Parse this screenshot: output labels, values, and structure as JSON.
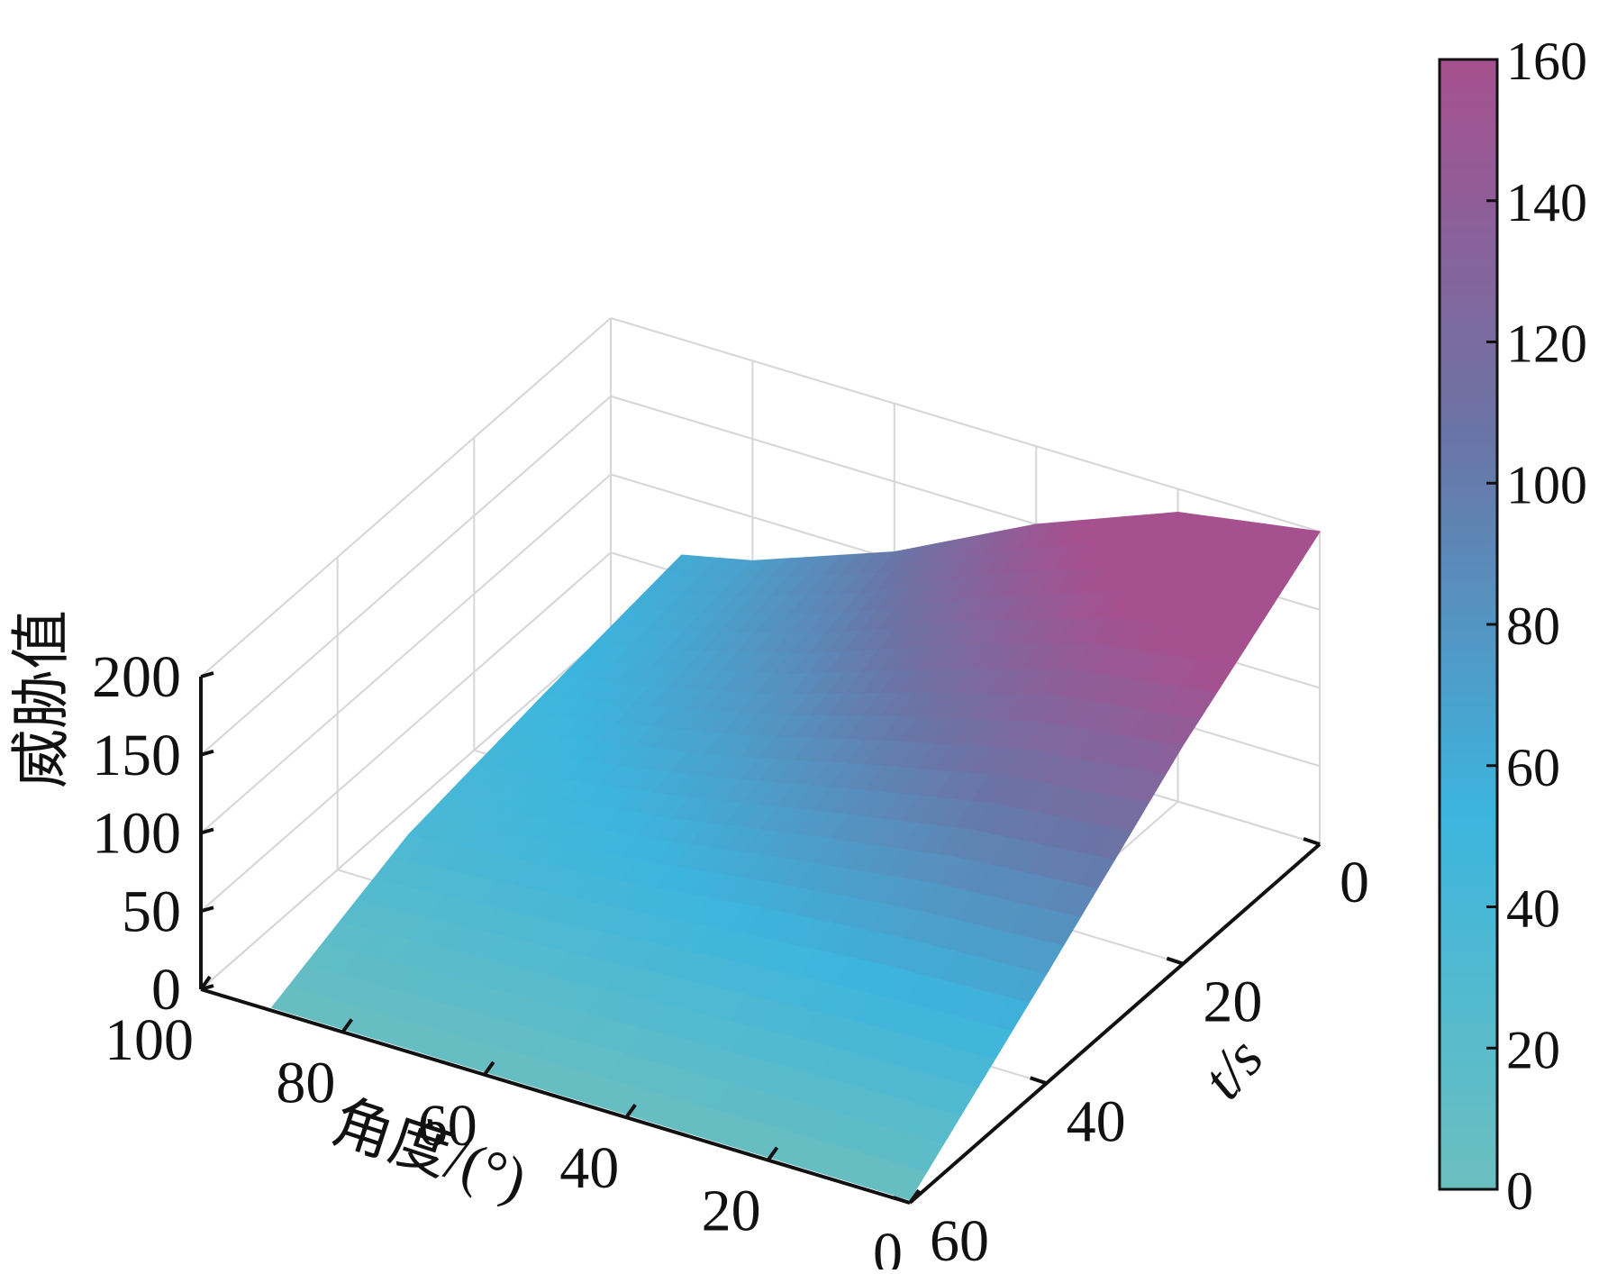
{
  "chart_data": {
    "type": "surface",
    "zlabel": "威胁值",
    "xlabel": "角度/(°)",
    "ylabel": "t/s",
    "xlim": [
      0,
      100
    ],
    "ylim": [
      0,
      60
    ],
    "zlim": [
      0,
      200
    ],
    "x_ticks": [
      "100",
      "80",
      "60",
      "40",
      "20",
      "0"
    ],
    "y_ticks": [
      "0",
      "20",
      "40",
      "60"
    ],
    "z_ticks": [
      "0",
      "50",
      "100",
      "150",
      "200"
    ],
    "colorbar": {
      "ticks": [
        "0",
        "20",
        "40",
        "60",
        "80",
        "100",
        "120",
        "140",
        "160"
      ],
      "range": [
        0,
        160
      ],
      "colormap": [
        "#6bbfbf",
        "#3cb5de",
        "#6a74a6",
        "#a6508f"
      ]
    },
    "surface": {
      "angle": [
        0,
        20,
        40,
        60,
        80,
        90
      ],
      "time": [
        0,
        20,
        40,
        60
      ],
      "threat": [
        [
          200,
          185,
          150,
          105,
          72,
          62
        ],
        [
          140,
          128,
          104,
          78,
          58,
          50
        ],
        [
          70,
          66,
          58,
          48,
          40,
          36
        ],
        [
          2,
          2,
          2,
          2,
          2,
          2
        ]
      ]
    },
    "grid": true
  }
}
